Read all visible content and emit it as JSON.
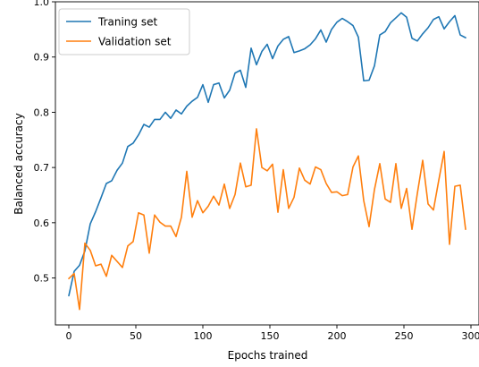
{
  "chart_data": {
    "type": "line",
    "title": "",
    "xlabel": "Epochs trained",
    "ylabel": "Balanced accuracy",
    "xlim": [
      -10,
      306
    ],
    "ylim": [
      0.415,
      1.0
    ],
    "xticks": [
      0,
      50,
      100,
      150,
      200,
      250,
      300
    ],
    "yticks": [
      0.5,
      0.6,
      0.7,
      0.8,
      0.9,
      1.0
    ],
    "xtick_labels": [
      "0",
      "50",
      "100",
      "150",
      "200",
      "250",
      "300"
    ],
    "ytick_labels": [
      "0.5",
      "0.6",
      "0.7",
      "0.8",
      "0.9",
      "1.0"
    ],
    "grid": false,
    "legend_position": "upper-left",
    "series": [
      {
        "name": "Traning set",
        "color": "#1f77b4",
        "x": [
          0,
          4,
          8,
          12,
          16,
          20,
          24,
          28,
          32,
          36,
          40,
          44,
          48,
          52,
          56,
          60,
          64,
          68,
          72,
          76,
          80,
          84,
          88,
          92,
          96,
          100,
          104,
          108,
          112,
          116,
          120,
          124,
          128,
          132,
          136,
          140,
          144,
          148,
          152,
          156,
          160,
          164,
          168,
          172,
          176,
          180,
          184,
          188,
          192,
          196,
          200,
          204,
          208,
          212,
          216,
          220,
          224,
          228,
          232,
          236,
          240,
          244,
          248,
          252,
          256,
          260,
          264,
          268,
          272,
          276,
          280,
          284,
          288,
          292,
          296
        ],
        "values": [
          0.468,
          0.512,
          0.523,
          0.549,
          0.598,
          0.62,
          0.645,
          0.671,
          0.676,
          0.695,
          0.708,
          0.738,
          0.744,
          0.759,
          0.778,
          0.773,
          0.787,
          0.787,
          0.8,
          0.789,
          0.804,
          0.797,
          0.811,
          0.82,
          0.827,
          0.85,
          0.818,
          0.85,
          0.853,
          0.826,
          0.84,
          0.871,
          0.876,
          0.845,
          0.916,
          0.886,
          0.91,
          0.923,
          0.897,
          0.92,
          0.932,
          0.937,
          0.908,
          0.911,
          0.915,
          0.922,
          0.933,
          0.949,
          0.927,
          0.95,
          0.963,
          0.97,
          0.964,
          0.957,
          0.936,
          0.857,
          0.858,
          0.884,
          0.94,
          0.946,
          0.962,
          0.971,
          0.98,
          0.972,
          0.934,
          0.929,
          0.942,
          0.953,
          0.968,
          0.973,
          0.951,
          0.964,
          0.975,
          0.94,
          0.935
        ]
      },
      {
        "name": "Validation set",
        "color": "#ff7f0e",
        "x": [
          0,
          4,
          8,
          12,
          16,
          20,
          24,
          28,
          32,
          36,
          40,
          44,
          48,
          52,
          56,
          60,
          64,
          68,
          72,
          76,
          80,
          84,
          88,
          92,
          96,
          100,
          104,
          108,
          112,
          116,
          120,
          124,
          128,
          132,
          136,
          140,
          144,
          148,
          152,
          156,
          160,
          164,
          168,
          172,
          176,
          180,
          184,
          188,
          192,
          196,
          200,
          204,
          208,
          212,
          216,
          220,
          224,
          228,
          232,
          236,
          240,
          244,
          248,
          252,
          256,
          260,
          264,
          268,
          272,
          276,
          280,
          284,
          288,
          292,
          296
        ],
        "values": [
          0.499,
          0.508,
          0.443,
          0.563,
          0.55,
          0.522,
          0.525,
          0.503,
          0.541,
          0.53,
          0.519,
          0.558,
          0.566,
          0.618,
          0.614,
          0.545,
          0.614,
          0.601,
          0.594,
          0.594,
          0.575,
          0.61,
          0.693,
          0.61,
          0.64,
          0.618,
          0.63,
          0.648,
          0.632,
          0.67,
          0.626,
          0.651,
          0.708,
          0.665,
          0.668,
          0.77,
          0.7,
          0.694,
          0.706,
          0.619,
          0.696,
          0.626,
          0.646,
          0.699,
          0.677,
          0.67,
          0.701,
          0.696,
          0.671,
          0.655,
          0.656,
          0.649,
          0.651,
          0.701,
          0.721,
          0.64,
          0.593,
          0.66,
          0.707,
          0.643,
          0.637,
          0.707,
          0.626,
          0.662,
          0.588,
          0.653,
          0.713,
          0.634,
          0.623,
          0.677,
          0.729,
          0.561,
          0.666,
          0.668,
          0.588
        ]
      }
    ]
  }
}
